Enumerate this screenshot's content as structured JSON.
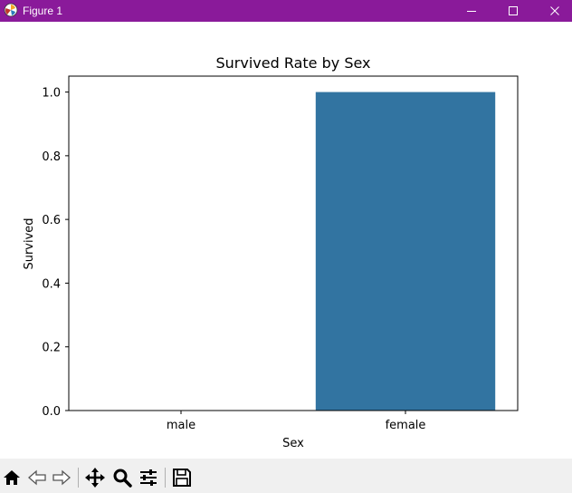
{
  "window": {
    "title": "Figure 1",
    "titlebar_color": "#8a1a9a"
  },
  "toolbar": {
    "buttons": [
      {
        "icon": "home-icon"
      },
      {
        "icon": "back-arrow-icon"
      },
      {
        "icon": "forward-arrow-icon"
      },
      {
        "icon": "pan-move-icon"
      },
      {
        "icon": "zoom-magnifier-icon"
      },
      {
        "icon": "configure-subplots-icon"
      },
      {
        "icon": "save-floppy-icon"
      }
    ]
  },
  "chart_data": {
    "type": "bar",
    "title": "Survived Rate by Sex",
    "xlabel": "Sex",
    "ylabel": "Survived",
    "categories": [
      "male",
      "female"
    ],
    "values": [
      0.0,
      1.0
    ],
    "ylim": [
      0,
      1.05
    ],
    "yticks": [
      "0.0",
      "0.2",
      "0.4",
      "0.6",
      "0.8",
      "1.0"
    ],
    "bar_color": "#3274a1",
    "grid": false,
    "legend": "none"
  }
}
